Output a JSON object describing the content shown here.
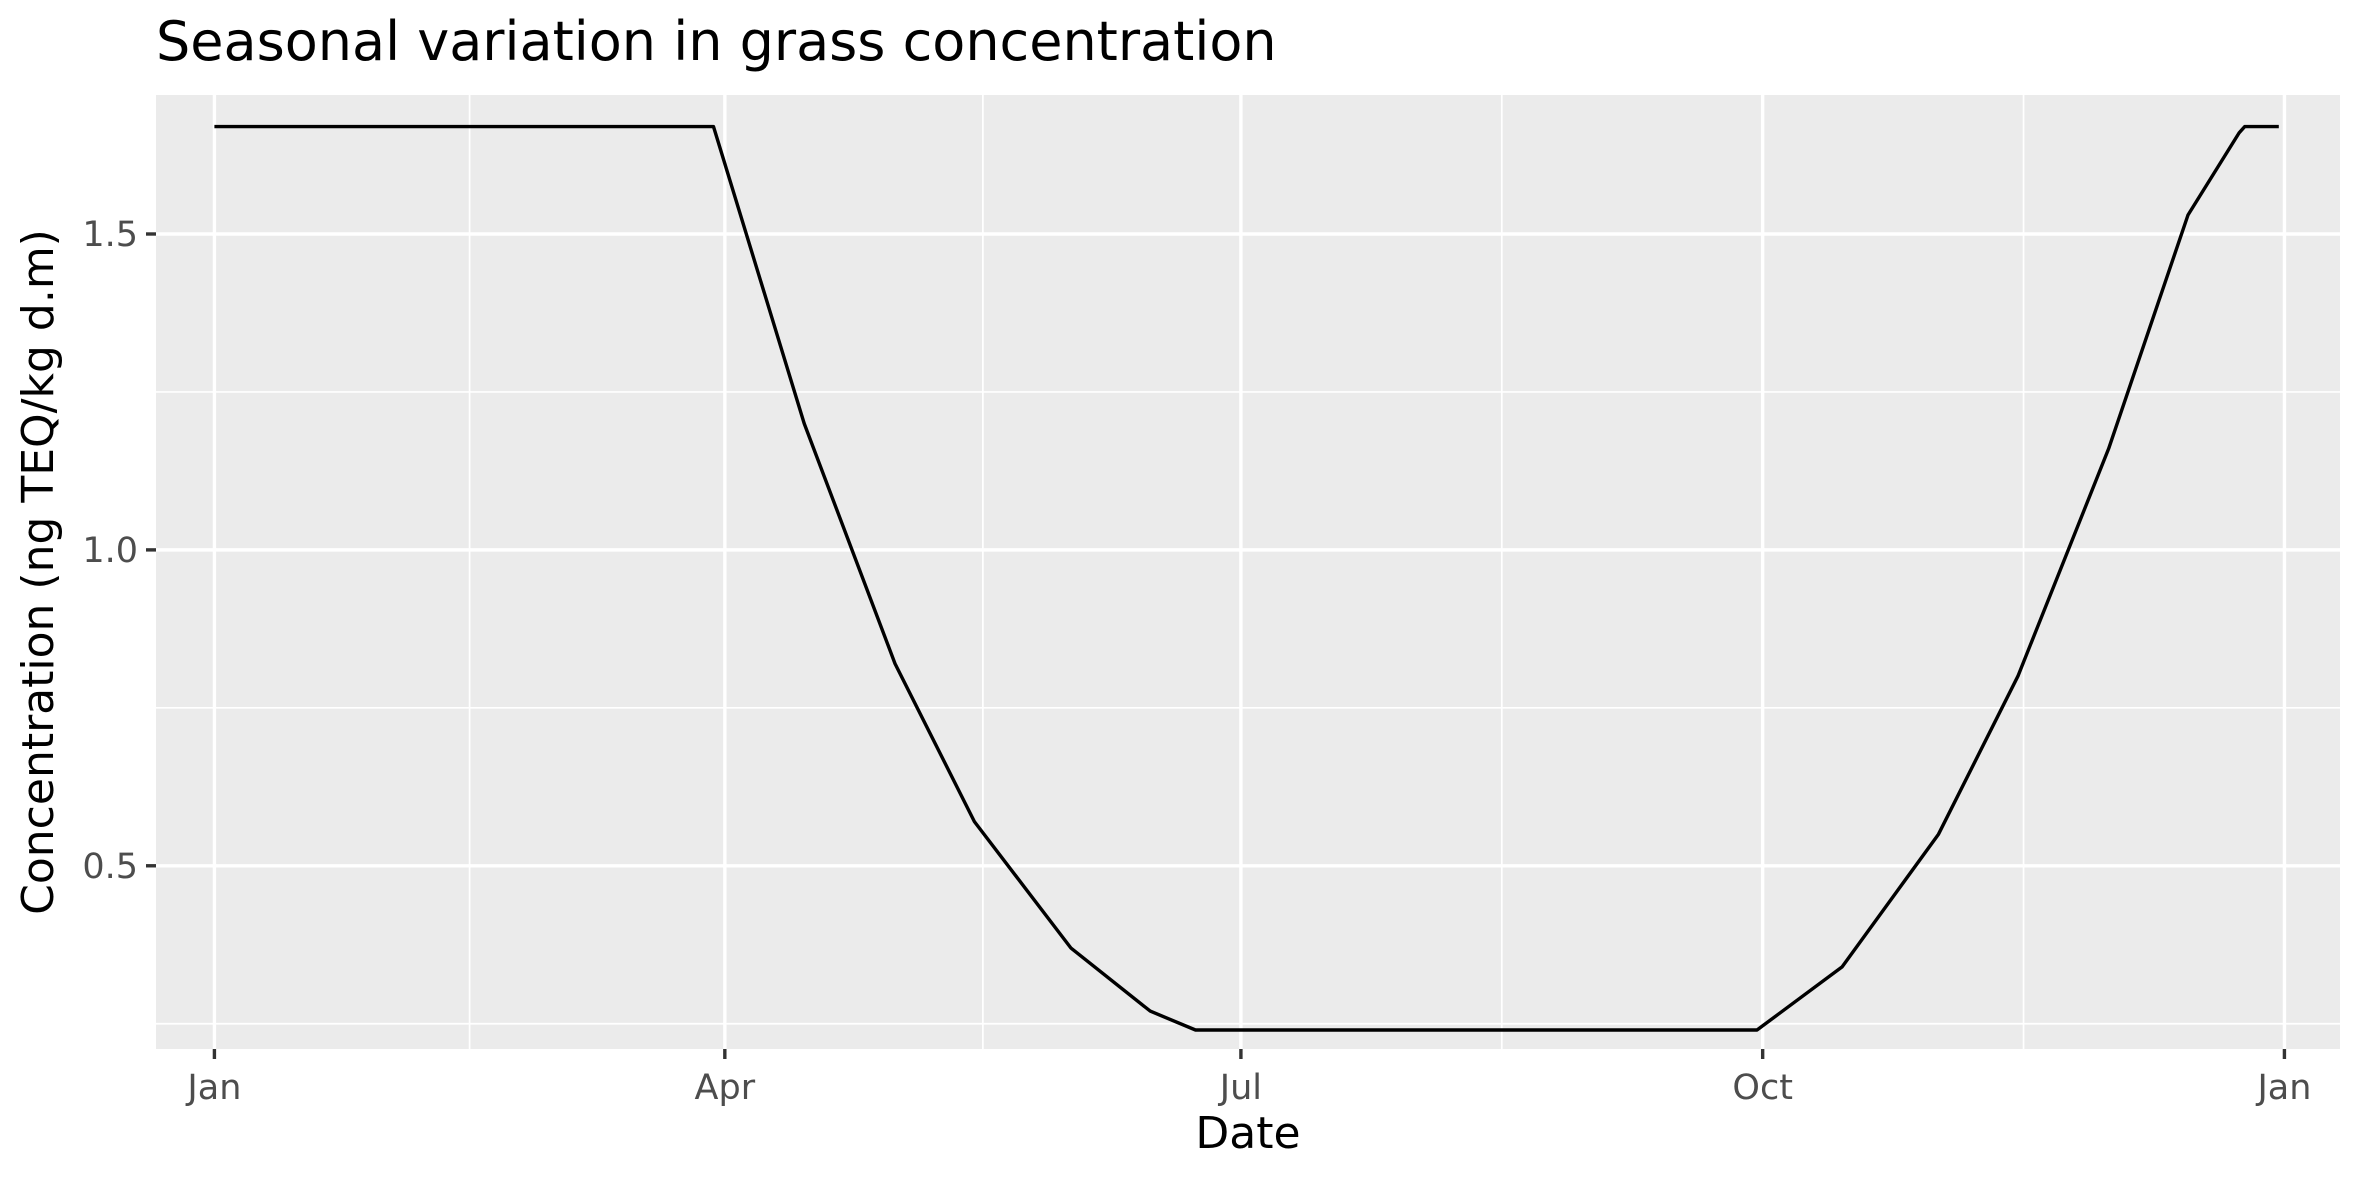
{
  "chart_data": {
    "type": "line",
    "title": "Seasonal variation in grass concentration",
    "xlabel": "Date",
    "ylabel": "Concentration (ng TEQ/kg d.m)",
    "x_axis_type": "date",
    "xlim": [
      "2023-01-01",
      "2024-01-01"
    ],
    "ylim": [
      0.21,
      1.72
    ],
    "x_ticks": [
      {
        "date": "2023-01-01",
        "label": "Jan"
      },
      {
        "date": "2023-04-01",
        "label": "Apr"
      },
      {
        "date": "2023-07-01",
        "label": "Jul"
      },
      {
        "date": "2023-10-01",
        "label": "Oct"
      },
      {
        "date": "2024-01-01",
        "label": "Jan"
      }
    ],
    "y_ticks": [
      {
        "value": 0.5,
        "label": "0.5"
      },
      {
        "value": 1.0,
        "label": "1.0"
      },
      {
        "value": 1.5,
        "label": "1.5"
      }
    ],
    "grid": true,
    "legend": "none",
    "line_color": "#000000",
    "panel_background": "#ebebeb",
    "series": [
      {
        "x": [
          "2023-01-01",
          "2023-03-30",
          "2023-04-15",
          "2023-05-01",
          "2023-05-15",
          "2023-06-01",
          "2023-06-15",
          "2023-06-23",
          "2023-09-30",
          "2023-10-15",
          "2023-11-01",
          "2023-11-15",
          "2023-12-01",
          "2023-12-15",
          "2023-12-24",
          "2023-12-25",
          "2023-12-31"
        ],
        "y": [
          1.67,
          1.67,
          1.2,
          0.82,
          0.57,
          0.37,
          0.27,
          0.24,
          0.24,
          0.34,
          0.55,
          0.8,
          1.16,
          1.53,
          1.66,
          1.67,
          1.67
        ]
      }
    ]
  }
}
